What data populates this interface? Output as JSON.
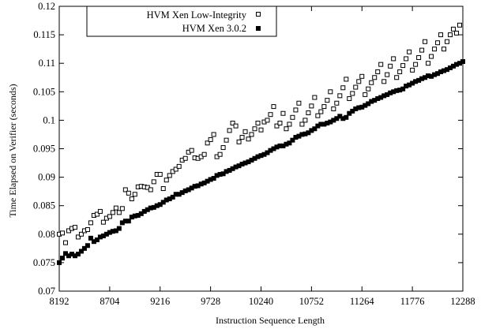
{
  "chart_data": {
    "type": "scatter",
    "xlabel": "Instruction Sequence Length",
    "ylabel": "Time Elapsed on Verifier (seconds)",
    "xlim": [
      8192,
      12288
    ],
    "ylim": [
      0.07,
      0.12
    ],
    "xticks": [
      8192,
      8704,
      9216,
      9728,
      10240,
      10752,
      11264,
      11776,
      12288
    ],
    "yticks": [
      0.07,
      0.075,
      0.08,
      0.085,
      0.09,
      0.095,
      0.1,
      0.105,
      0.11,
      0.115,
      0.12
    ],
    "ytick_labels": [
      "0.07",
      "0.075",
      "0.08",
      "0.085",
      "0.09",
      "0.095",
      "0.1",
      "0.105",
      "0.11",
      "0.115",
      "0.12"
    ],
    "grid": false,
    "legend_position": "top-left",
    "series": [
      {
        "name": "HVM Xen Low-Integrity",
        "marker": "open-square",
        "color": "#000000",
        "x": [
          8192,
          8224,
          8256,
          8288,
          8320,
          8352,
          8384,
          8416,
          8448,
          8480,
          8512,
          8544,
          8576,
          8608,
          8640,
          8672,
          8704,
          8736,
          8768,
          8800,
          8832,
          8864,
          8896,
          8928,
          8960,
          8992,
          9024,
          9056,
          9088,
          9120,
          9152,
          9184,
          9216,
          9248,
          9280,
          9312,
          9344,
          9376,
          9408,
          9440,
          9472,
          9504,
          9536,
          9568,
          9600,
          9632,
          9664,
          9696,
          9728,
          9760,
          9792,
          9824,
          9856,
          9888,
          9920,
          9952,
          9984,
          10016,
          10048,
          10080,
          10112,
          10144,
          10176,
          10208,
          10240,
          10272,
          10304,
          10336,
          10368,
          10400,
          10432,
          10464,
          10496,
          10528,
          10560,
          10592,
          10624,
          10656,
          10688,
          10720,
          10752,
          10784,
          10816,
          10848,
          10880,
          10912,
          10944,
          10976,
          11008,
          11040,
          11072,
          11104,
          11136,
          11168,
          11200,
          11232,
          11264,
          11296,
          11328,
          11360,
          11392,
          11424,
          11456,
          11488,
          11520,
          11552,
          11584,
          11616,
          11648,
          11680,
          11712,
          11744,
          11776,
          11808,
          11840,
          11872,
          11904,
          11936,
          11968,
          12000,
          12032,
          12064,
          12096,
          12128,
          12160,
          12192,
          12224,
          12256
        ],
        "y": [
          0.08,
          0.0802,
          0.0785,
          0.0806,
          0.081,
          0.0812,
          0.0795,
          0.08,
          0.0806,
          0.0808,
          0.082,
          0.0833,
          0.0835,
          0.084,
          0.0821,
          0.0828,
          0.0831,
          0.0838,
          0.0846,
          0.0838,
          0.0845,
          0.0878,
          0.0872,
          0.0862,
          0.087,
          0.0883,
          0.0884,
          0.0883,
          0.0882,
          0.0878,
          0.0892,
          0.0905,
          0.0905,
          0.088,
          0.0895,
          0.0903,
          0.091,
          0.0914,
          0.0919,
          0.093,
          0.0933,
          0.0944,
          0.0947,
          0.0934,
          0.0933,
          0.0936,
          0.094,
          0.096,
          0.0966,
          0.0975,
          0.0936,
          0.094,
          0.0952,
          0.0965,
          0.0982,
          0.0995,
          0.099,
          0.0962,
          0.097,
          0.098,
          0.0967,
          0.0975,
          0.0985,
          0.0995,
          0.0983,
          0.0997,
          0.1,
          0.101,
          0.1024,
          0.099,
          0.0995,
          0.1012,
          0.0985,
          0.0993,
          0.1005,
          0.1018,
          0.103,
          0.0993,
          0.1,
          0.1013,
          0.1025,
          0.104,
          0.1008,
          0.1015,
          0.1024,
          0.1035,
          0.105,
          0.102,
          0.103,
          0.1043,
          0.1057,
          0.1072,
          0.1038,
          0.1047,
          0.1058,
          0.1068,
          0.1077,
          0.1045,
          0.1055,
          0.1066,
          0.1075,
          0.1085,
          0.1098,
          0.1068,
          0.108,
          0.1095,
          0.1108,
          0.1075,
          0.1085,
          0.1096,
          0.1108,
          0.112,
          0.1088,
          0.1098,
          0.111,
          0.1123,
          0.1138,
          0.11,
          0.1112,
          0.1125,
          0.1136,
          0.115,
          0.1125,
          0.1138,
          0.115,
          0.116,
          0.1153,
          0.1167
        ]
      },
      {
        "name": "HVM Xen 3.0.2",
        "marker": "filled-square",
        "color": "#000000",
        "x": [
          8192,
          8224,
          8256,
          8288,
          8320,
          8352,
          8384,
          8416,
          8448,
          8480,
          8512,
          8544,
          8576,
          8608,
          8640,
          8672,
          8704,
          8736,
          8768,
          8800,
          8832,
          8864,
          8896,
          8928,
          8960,
          8992,
          9024,
          9056,
          9088,
          9120,
          9152,
          9184,
          9216,
          9248,
          9280,
          9312,
          9344,
          9376,
          9408,
          9440,
          9472,
          9504,
          9536,
          9568,
          9600,
          9632,
          9664,
          9696,
          9728,
          9760,
          9792,
          9824,
          9856,
          9888,
          9920,
          9952,
          9984,
          10016,
          10048,
          10080,
          10112,
          10144,
          10176,
          10208,
          10240,
          10272,
          10304,
          10336,
          10368,
          10400,
          10432,
          10464,
          10496,
          10528,
          10560,
          10592,
          10624,
          10656,
          10688,
          10720,
          10752,
          10784,
          10816,
          10848,
          10880,
          10912,
          10944,
          10976,
          11008,
          11040,
          11072,
          11104,
          11136,
          11168,
          11200,
          11232,
          11264,
          11296,
          11328,
          11360,
          11392,
          11424,
          11456,
          11488,
          11520,
          11552,
          11584,
          11616,
          11648,
          11680,
          11712,
          11744,
          11776,
          11808,
          11840,
          11872,
          11904,
          11936,
          11968,
          12000,
          12032,
          12064,
          12096,
          12128,
          12160,
          12192,
          12224,
          12256,
          12288
        ],
        "y": [
          0.075,
          0.0758,
          0.0766,
          0.0762,
          0.0765,
          0.0762,
          0.0765,
          0.077,
          0.0775,
          0.078,
          0.0793,
          0.0787,
          0.079,
          0.0795,
          0.0797,
          0.08,
          0.0803,
          0.0805,
          0.0806,
          0.081,
          0.082,
          0.0823,
          0.0823,
          0.083,
          0.0832,
          0.0833,
          0.0836,
          0.084,
          0.0843,
          0.0846,
          0.0847,
          0.085,
          0.0852,
          0.0856,
          0.086,
          0.0862,
          0.0865,
          0.087,
          0.087,
          0.0873,
          0.0876,
          0.0878,
          0.0881,
          0.0884,
          0.0885,
          0.0888,
          0.089,
          0.0893,
          0.0896,
          0.0898,
          0.0903,
          0.0905,
          0.0906,
          0.091,
          0.0912,
          0.0915,
          0.0918,
          0.092,
          0.0923,
          0.0925,
          0.0927,
          0.093,
          0.0933,
          0.0936,
          0.0938,
          0.094,
          0.0943,
          0.0947,
          0.095,
          0.0953,
          0.0955,
          0.0955,
          0.0958,
          0.096,
          0.0965,
          0.097,
          0.0972,
          0.0975,
          0.0976,
          0.0978,
          0.0982,
          0.0985,
          0.099,
          0.0993,
          0.0993,
          0.0995,
          0.0997,
          0.1,
          0.1003,
          0.1007,
          0.1003,
          0.1005,
          0.1012,
          0.1016,
          0.102,
          0.1022,
          0.1023,
          0.1026,
          0.1029,
          0.1033,
          0.1035,
          0.1038,
          0.104,
          0.1043,
          0.1045,
          0.1048,
          0.105,
          0.1052,
          0.1053,
          0.1055,
          0.106,
          0.1062,
          0.1065,
          0.1068,
          0.107,
          0.1073,
          0.1075,
          0.1078,
          0.1077,
          0.108,
          0.1082,
          0.1085,
          0.1087,
          0.1089,
          0.1092,
          0.1095,
          0.1098,
          0.11,
          0.1103
        ]
      }
    ]
  }
}
